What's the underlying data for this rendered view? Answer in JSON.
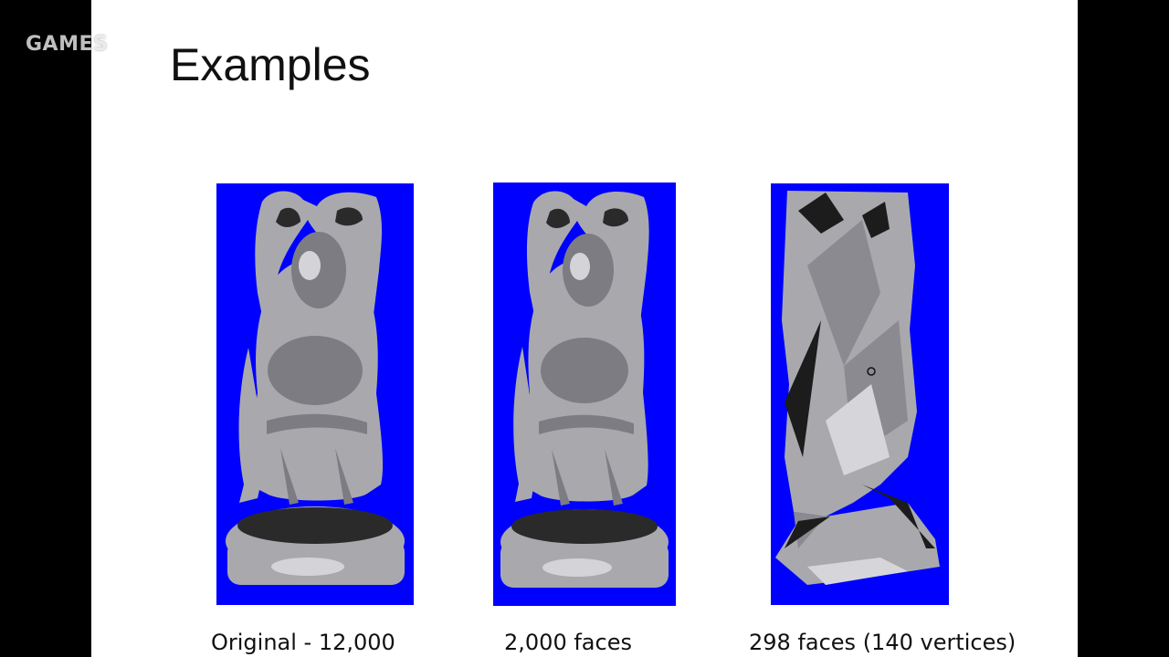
{
  "watermark": {
    "text": "GAMES"
  },
  "slide": {
    "title": "Examples",
    "background_color": "#0000ff",
    "mesh_color": "#a7a7ab",
    "figures": [
      {
        "caption": "Original - 12,000"
      },
      {
        "caption": "2,000 faces"
      },
      {
        "caption": "298 faces (140 vertices)"
      }
    ]
  }
}
